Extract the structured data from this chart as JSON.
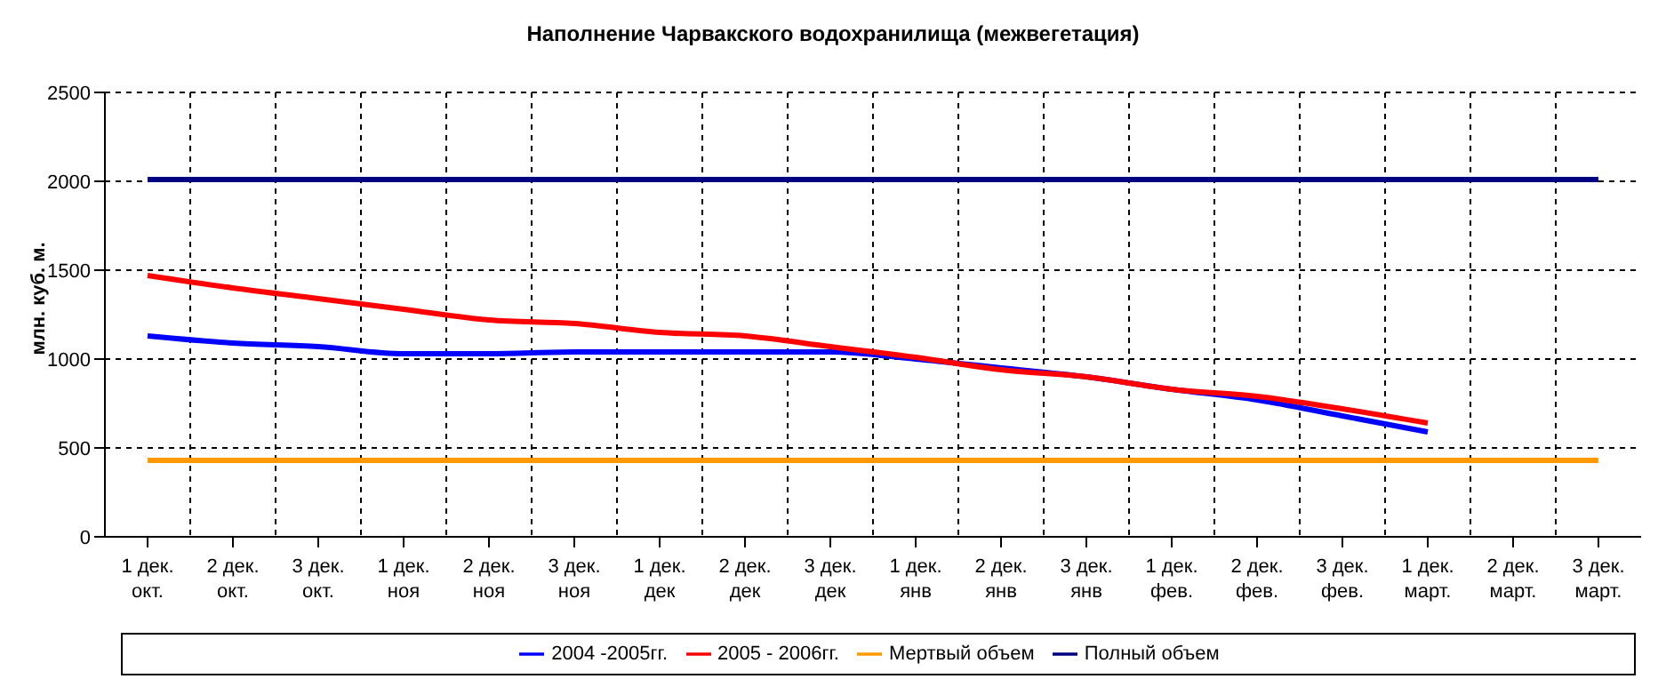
{
  "chart_data": {
    "type": "line",
    "title": "Наполнение Чарвакского водохранилища  (межвегетация)",
    "ylabel": "млн. куб. м.",
    "categories": [
      "1 дек.\nокт.",
      "2 дек.\nокт.",
      "3 дек.\nокт.",
      "1 дек.\nноя",
      "2 дек.\nноя",
      "3 дек.\nноя",
      "1 дек.\nдек",
      "2 дек.\nдек",
      "3 дек.\nдек",
      "1 дек.\nянв",
      "2 дек.\nянв",
      "3 дек.\nянв",
      "1 дек.\nфев.",
      "2 дек.\nфев.",
      "3 дек.\nфев.",
      "1 дек.\nмарт.",
      "2 дек.\nмарт.",
      "3 дек.\nмарт."
    ],
    "series": [
      {
        "name": "2004 -2005гг.",
        "color": "#0000ff",
        "values": [
          1130,
          1090,
          1070,
          1030,
          1030,
          1040,
          1040,
          1040,
          1040,
          1000,
          950,
          900,
          830,
          770,
          680,
          590,
          null,
          null
        ]
      },
      {
        "name": "2005 - 2006гг.",
        "color": "#ff0000",
        "values": [
          1470,
          1400,
          1340,
          1280,
          1220,
          1200,
          1150,
          1130,
          1070,
          1010,
          940,
          900,
          830,
          790,
          720,
          640,
          null,
          null
        ]
      },
      {
        "name": "Полный объем",
        "color": "#000080",
        "values": [
          2010,
          2010,
          2010,
          2010,
          2010,
          2010,
          2010,
          2010,
          2010,
          2010,
          2010,
          2010,
          2010,
          2010,
          2010,
          2010,
          2010,
          2010
        ]
      },
      {
        "name": "Мертвый объем",
        "color": "#ff9900",
        "values": [
          430,
          430,
          430,
          430,
          430,
          430,
          430,
          430,
          430,
          430,
          430,
          430,
          430,
          430,
          430,
          430,
          430,
          430
        ]
      }
    ],
    "ylim": [
      0,
      2500
    ],
    "yticks": [
      0,
      500,
      1000,
      1500,
      2000,
      2500
    ],
    "grid": true,
    "legend": "bottom",
    "marker": "none",
    "line_style": "solid"
  }
}
